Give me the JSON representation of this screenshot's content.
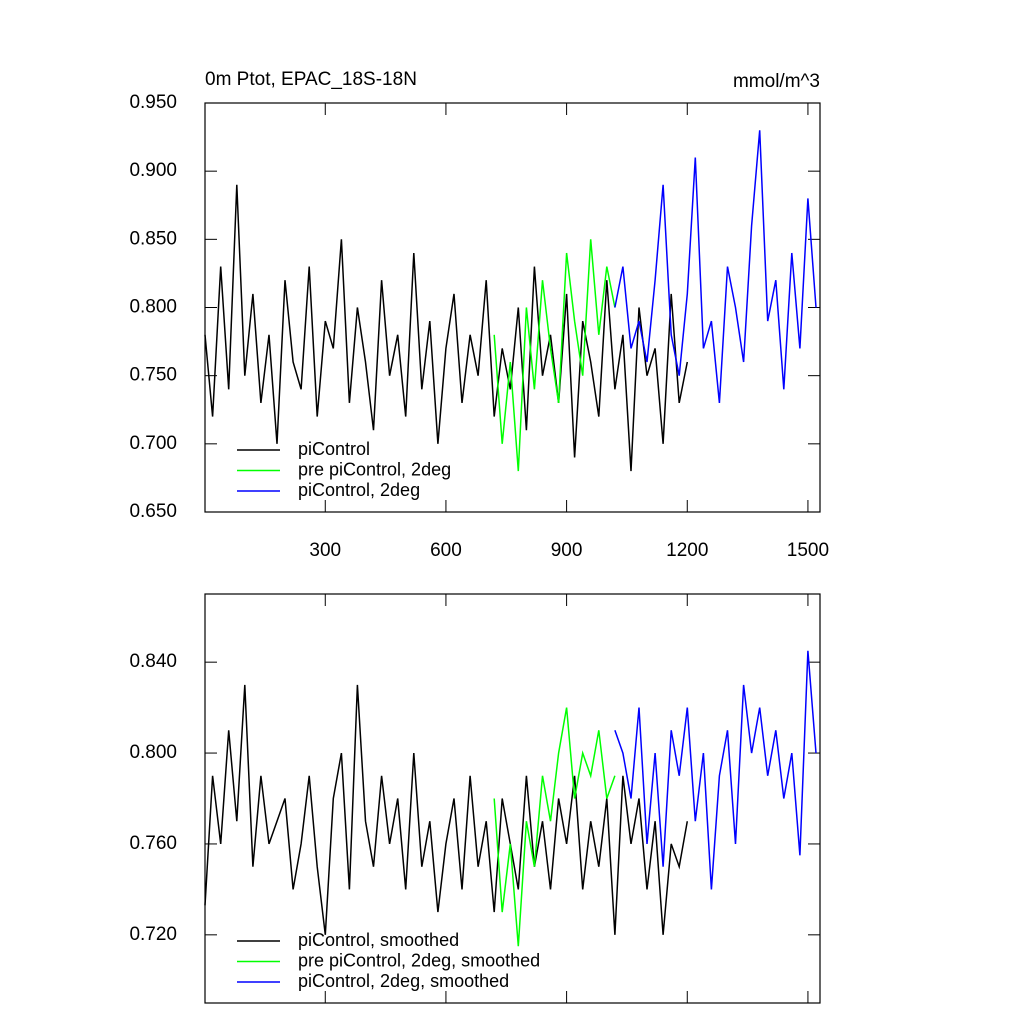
{
  "chart_data": [
    {
      "type": "line",
      "title": "0m Ptot, EPAC_18S-18N",
      "units": "mmol/m^3",
      "xlim": [
        1,
        1530
      ],
      "xticks": [
        300,
        600,
        900,
        1200,
        1500
      ],
      "xtick_labels": true,
      "ylim": [
        0.65,
        0.95
      ],
      "yticks": [
        {
          "value": 0.65,
          "label": "0.650"
        },
        {
          "value": 0.7,
          "label": "0.700"
        },
        {
          "value": 0.75,
          "label": "0.750"
        },
        {
          "value": 0.8,
          "label": "0.800"
        },
        {
          "value": 0.85,
          "label": "0.850"
        },
        {
          "value": 0.9,
          "label": "0.900"
        },
        {
          "value": 0.95,
          "label": "0.950"
        }
      ],
      "legend": "lower left",
      "series": [
        {
          "name": "piControl",
          "color": "#000000",
          "x": [
            1,
            20,
            40,
            60,
            80,
            100,
            120,
            140,
            160,
            180,
            200,
            220,
            240,
            260,
            280,
            300,
            320,
            340,
            360,
            380,
            400,
            420,
            440,
            460,
            480,
            500,
            520,
            540,
            560,
            580,
            600,
            620,
            640,
            660,
            680,
            700,
            720,
            740,
            760,
            780,
            800,
            820,
            840,
            860,
            880,
            900,
            920,
            940,
            960,
            980,
            1000,
            1020,
            1040,
            1060,
            1080,
            1100,
            1120,
            1140,
            1160,
            1180,
            1200
          ],
          "values": [
            0.78,
            0.72,
            0.83,
            0.74,
            0.89,
            0.75,
            0.81,
            0.73,
            0.78,
            0.7,
            0.82,
            0.76,
            0.74,
            0.83,
            0.72,
            0.79,
            0.77,
            0.85,
            0.73,
            0.8,
            0.76,
            0.71,
            0.82,
            0.75,
            0.78,
            0.72,
            0.84,
            0.74,
            0.79,
            0.7,
            0.77,
            0.81,
            0.73,
            0.78,
            0.75,
            0.82,
            0.72,
            0.77,
            0.74,
            0.8,
            0.71,
            0.83,
            0.75,
            0.78,
            0.73,
            0.81,
            0.69,
            0.79,
            0.76,
            0.72,
            0.82,
            0.74,
            0.78,
            0.68,
            0.8,
            0.75,
            0.77,
            0.7,
            0.81,
            0.73,
            0.76
          ]
        },
        {
          "name": "pre piControl, 2deg",
          "color": "#00ff00",
          "x": [
            720,
            740,
            760,
            780,
            800,
            820,
            840,
            860,
            880,
            900,
            920,
            940,
            960,
            980,
            1000,
            1020
          ],
          "values": [
            0.78,
            0.7,
            0.76,
            0.68,
            0.8,
            0.74,
            0.82,
            0.77,
            0.73,
            0.84,
            0.79,
            0.75,
            0.85,
            0.78,
            0.83,
            0.8
          ]
        },
        {
          "name": "piControl, 2deg",
          "color": "#0000ff",
          "x": [
            1020,
            1040,
            1060,
            1080,
            1100,
            1120,
            1140,
            1160,
            1180,
            1200,
            1220,
            1240,
            1260,
            1280,
            1300,
            1320,
            1340,
            1360,
            1380,
            1400,
            1420,
            1440,
            1460,
            1480,
            1500,
            1520
          ],
          "values": [
            0.8,
            0.83,
            0.77,
            0.79,
            0.76,
            0.82,
            0.89,
            0.78,
            0.75,
            0.81,
            0.91,
            0.77,
            0.79,
            0.73,
            0.83,
            0.8,
            0.76,
            0.86,
            0.93,
            0.79,
            0.82,
            0.74,
            0.84,
            0.77,
            0.88,
            0.8
          ]
        }
      ]
    },
    {
      "type": "line",
      "xlim": [
        1,
        1530
      ],
      "xticks": [
        300,
        600,
        900,
        1200,
        1500
      ],
      "xtick_labels": false,
      "ylim": [
        0.69,
        0.87
      ],
      "yticks": [
        {
          "value": 0.72,
          "label": "0.720"
        },
        {
          "value": 0.76,
          "label": "0.760"
        },
        {
          "value": 0.8,
          "label": "0.800"
        },
        {
          "value": 0.84,
          "label": "0.840"
        }
      ],
      "legend": "lower left",
      "series": [
        {
          "name": "piControl, smoothed",
          "color": "#000000",
          "x": [
            1,
            20,
            40,
            60,
            80,
            100,
            120,
            140,
            160,
            180,
            200,
            220,
            240,
            260,
            280,
            300,
            320,
            340,
            360,
            380,
            400,
            420,
            440,
            460,
            480,
            500,
            520,
            540,
            560,
            580,
            600,
            620,
            640,
            660,
            680,
            700,
            720,
            740,
            760,
            780,
            800,
            820,
            840,
            860,
            880,
            900,
            920,
            940,
            960,
            980,
            1000,
            1020,
            1040,
            1060,
            1080,
            1100,
            1120,
            1140,
            1160,
            1180,
            1200
          ],
          "values": [
            0.733,
            0.79,
            0.76,
            0.81,
            0.77,
            0.83,
            0.75,
            0.79,
            0.76,
            0.77,
            0.78,
            0.74,
            0.76,
            0.79,
            0.75,
            0.72,
            0.78,
            0.8,
            0.74,
            0.83,
            0.77,
            0.75,
            0.79,
            0.76,
            0.78,
            0.74,
            0.8,
            0.75,
            0.77,
            0.73,
            0.76,
            0.78,
            0.74,
            0.79,
            0.75,
            0.77,
            0.73,
            0.78,
            0.76,
            0.74,
            0.79,
            0.75,
            0.77,
            0.74,
            0.78,
            0.76,
            0.79,
            0.74,
            0.77,
            0.75,
            0.78,
            0.72,
            0.79,
            0.76,
            0.78,
            0.74,
            0.77,
            0.72,
            0.76,
            0.75,
            0.77
          ]
        },
        {
          "name": "pre piControl, 2deg, smoothed",
          "color": "#00ff00",
          "x": [
            720,
            740,
            760,
            780,
            800,
            820,
            840,
            860,
            880,
            900,
            920,
            940,
            960,
            980,
            1000,
            1020
          ],
          "values": [
            0.78,
            0.73,
            0.76,
            0.715,
            0.77,
            0.75,
            0.79,
            0.77,
            0.8,
            0.82,
            0.78,
            0.8,
            0.79,
            0.81,
            0.78,
            0.79
          ]
        },
        {
          "name": "piControl, 2deg, smoothed",
          "color": "#0000ff",
          "x": [
            1020,
            1040,
            1060,
            1080,
            1100,
            1120,
            1140,
            1160,
            1180,
            1200,
            1220,
            1240,
            1260,
            1280,
            1300,
            1320,
            1340,
            1360,
            1380,
            1400,
            1420,
            1440,
            1460,
            1480,
            1500,
            1520
          ],
          "values": [
            0.81,
            0.8,
            0.78,
            0.82,
            0.76,
            0.8,
            0.75,
            0.81,
            0.79,
            0.82,
            0.77,
            0.8,
            0.74,
            0.79,
            0.81,
            0.76,
            0.83,
            0.8,
            0.82,
            0.79,
            0.81,
            0.78,
            0.8,
            0.755,
            0.845,
            0.8
          ]
        }
      ]
    }
  ]
}
